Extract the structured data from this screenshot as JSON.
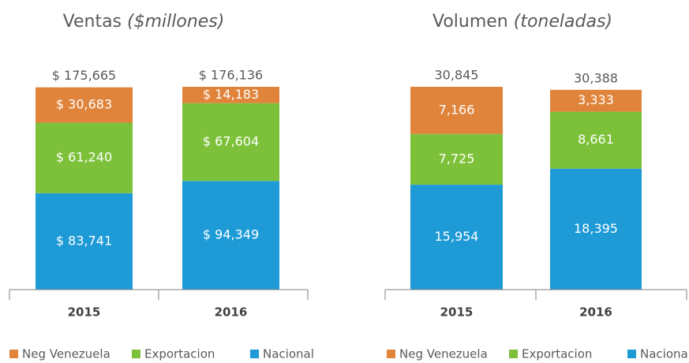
{
  "chart_data": [
    {
      "type": "stacked_bar",
      "title": "Ventas",
      "unit": "($millones)",
      "categories": [
        "2015",
        "2016"
      ],
      "series": [
        {
          "name": "Neg Venezuela",
          "color": "#e0843c",
          "values": [
            30683,
            14183
          ],
          "value_labels": [
            "$ 30,683",
            "$ 14,183"
          ]
        },
        {
          "name": "Exportacion",
          "color": "#7dc13a",
          "values": [
            61240,
            67604
          ],
          "value_labels": [
            "$ 61,240",
            "$ 67,604"
          ]
        },
        {
          "name": "Nacional",
          "color": "#1e9bd7",
          "values": [
            83741,
            94349
          ],
          "value_labels": [
            "$ 83,741",
            "$ 94,349"
          ]
        }
      ],
      "totals": [
        175665,
        176136
      ],
      "total_labels": [
        "$ 175,665",
        "$ 176,136"
      ],
      "legend": "bottom"
    },
    {
      "type": "stacked_bar",
      "title": "Volumen",
      "unit": "(toneladas)",
      "categories": [
        "2015",
        "2016"
      ],
      "series": [
        {
          "name": "Neg Venezuela",
          "color": "#e0843c",
          "values": [
            7166,
            3333
          ],
          "value_labels": [
            "7,166",
            "3,333"
          ]
        },
        {
          "name": "Exportacion",
          "color": "#7dc13a",
          "values": [
            7725,
            8661
          ],
          "value_labels": [
            "7,725",
            "8,661"
          ]
        },
        {
          "name": "Nacional",
          "color": "#1e9bd7",
          "values": [
            15954,
            18395
          ],
          "value_labels": [
            "15,954",
            "18,395"
          ]
        }
      ],
      "totals": [
        30845,
        30388
      ],
      "total_labels": [
        "30,845",
        "30,388"
      ],
      "legend": "bottom"
    }
  ]
}
